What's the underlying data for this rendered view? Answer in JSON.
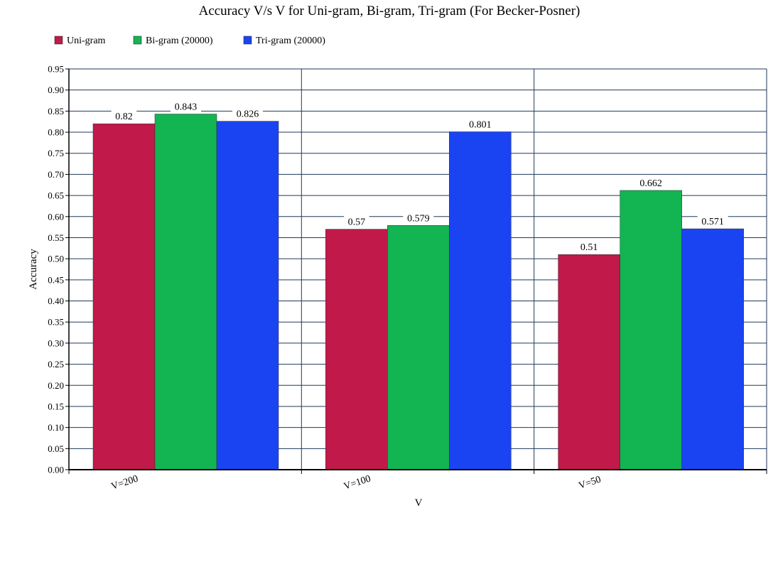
{
  "chart_data": {
    "type": "bar",
    "title": "Accuracy V/s V for Uni-gram, Bi-gram, Tri-gram (For Becker-Posner)",
    "xlabel": "V",
    "ylabel": "Accuracy",
    "categories": [
      "V=200",
      "V=100",
      "V=50"
    ],
    "series": [
      {
        "name": "Uni-gram",
        "color": "#c0194a",
        "values": [
          0.82,
          0.57,
          0.51
        ],
        "labels": [
          "0.82",
          "0.57",
          "0.51"
        ]
      },
      {
        "name": "Bi-gram (20000)",
        "color": "#12b552",
        "values": [
          0.843,
          0.579,
          0.662
        ],
        "labels": [
          "0.843",
          "0.579",
          "0.662"
        ]
      },
      {
        "name": "Tri-gram (20000)",
        "color": "#1a44f2",
        "values": [
          0.826,
          0.801,
          0.571
        ],
        "labels": [
          "0.826",
          "0.801",
          "0.571"
        ]
      }
    ],
    "ylim": [
      0,
      0.95
    ],
    "yticks": [
      "0.00",
      "0.05",
      "0.10",
      "0.15",
      "0.20",
      "0.25",
      "0.30",
      "0.35",
      "0.40",
      "0.45",
      "0.50",
      "0.55",
      "0.60",
      "0.65",
      "0.70",
      "0.75",
      "0.80",
      "0.85",
      "0.90",
      "0.95"
    ],
    "grid": true,
    "legend_position": "top-left",
    "grid_color": "#1f3a5a"
  }
}
